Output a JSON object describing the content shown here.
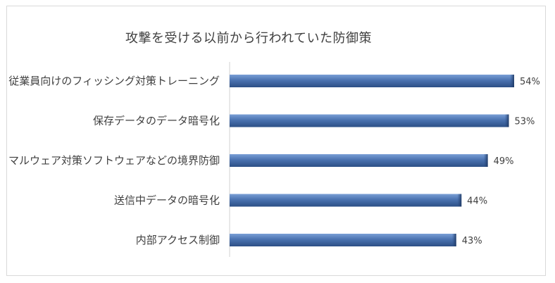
{
  "chart_data": {
    "type": "bar",
    "orientation": "horizontal",
    "title": "攻撃を受ける以前から行われていた防御策",
    "categories": [
      "従業員向けのフィッシング対策トレーニング",
      "保存データのデータ暗号化",
      "マルウェア対策ソフトウェアなどの境界防御",
      "送信中データの暗号化",
      "内部アクセス制御"
    ],
    "values": [
      54,
      53,
      49,
      44,
      43
    ],
    "value_labels": [
      "54%",
      "53%",
      "49%",
      "44%",
      "43%"
    ],
    "unit": "%",
    "xlim": [
      0,
      60
    ],
    "grid": false,
    "legend": "none",
    "bar_color": "#4a72b0"
  }
}
